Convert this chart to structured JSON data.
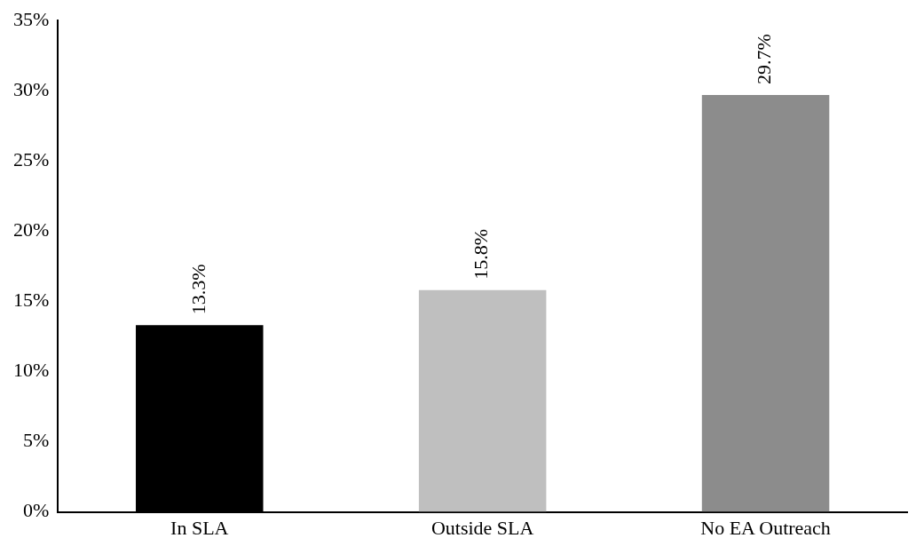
{
  "chart_data": {
    "type": "bar",
    "categories": [
      "In SLA",
      "Outside SLA",
      "No EA Outreach"
    ],
    "values": [
      13.3,
      15.8,
      29.7
    ],
    "colors": [
      "#000000",
      "#bfbfbf",
      "#8c8c8c"
    ],
    "value_labels": [
      "13.3%",
      "15.8%",
      "29.7%"
    ],
    "ylim": [
      0,
      35
    ],
    "yticks": [
      {
        "value": 0,
        "label": "0%"
      },
      {
        "value": 5,
        "label": "5%"
      },
      {
        "value": 10,
        "label": "10%"
      },
      {
        "value": 15,
        "label": "15%"
      },
      {
        "value": 20,
        "label": "20%"
      },
      {
        "value": 25,
        "label": "25%"
      },
      {
        "value": 30,
        "label": "30%"
      },
      {
        "value": 35,
        "label": "35%"
      }
    ],
    "grid": false,
    "legend": false
  }
}
